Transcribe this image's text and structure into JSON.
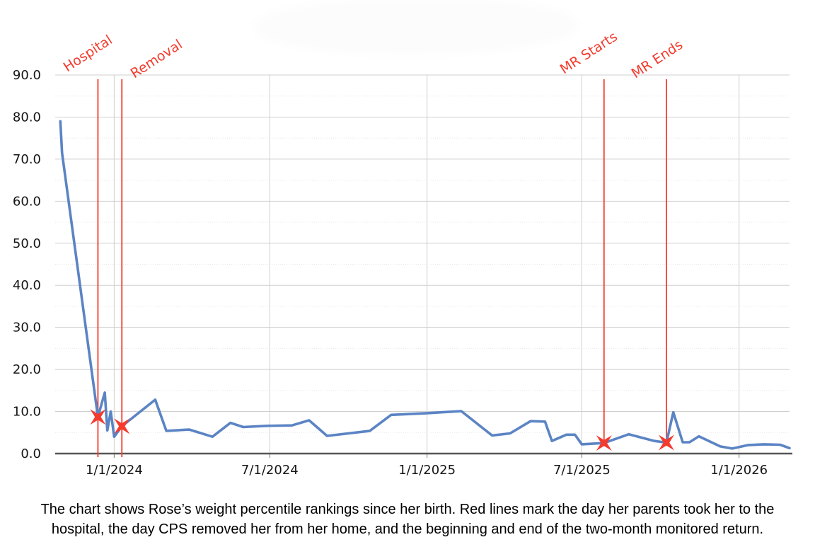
{
  "caption": {
    "line1": "The chart shows Rose’s weight percentile rankings since her birth. Red lines mark the day her parents took her to the",
    "line2": "hospital, the day CPS removed her from her home, and the beginning and end of the two-month monitored return."
  },
  "chart_data": {
    "type": "line",
    "title": "",
    "legend": "none",
    "grid": true,
    "ylabel": "",
    "xlabel": "",
    "ylim": [
      0,
      90
    ],
    "y_tick_labels": [
      "0.0",
      "10.0",
      "20.0",
      "30.0",
      "40.0",
      "50.0",
      "60.0",
      "70.0",
      "80.0",
      "90.0"
    ],
    "y_minor_step": 5,
    "x_domain": [
      "2023-10-24",
      "2026-03-01"
    ],
    "x_ticks": [
      {
        "date": "2024-01-01",
        "label": "1/1/2024"
      },
      {
        "date": "2024-07-01",
        "label": "7/1/2024"
      },
      {
        "date": "2025-01-01",
        "label": "1/1/2025"
      },
      {
        "date": "2025-07-01",
        "label": "7/1/2025"
      },
      {
        "date": "2026-01-01",
        "label": "1/1/2026"
      }
    ],
    "series": [
      {
        "name": "Weight percentile",
        "color": "#5b84c4",
        "points": [
          {
            "date": "2023-10-30",
            "value": 79
          },
          {
            "date": "2023-11-01",
            "value": 71.5
          },
          {
            "date": "2023-12-13",
            "value": 8.7
          },
          {
            "date": "2023-12-21",
            "value": 14.5
          },
          {
            "date": "2023-12-24",
            "value": 5.5
          },
          {
            "date": "2023-12-28",
            "value": 10
          },
          {
            "date": "2024-01-01",
            "value": 4
          },
          {
            "date": "2024-01-10",
            "value": 6.5
          },
          {
            "date": "2024-02-18",
            "value": 12.8
          },
          {
            "date": "2024-03-02",
            "value": 5.4
          },
          {
            "date": "2024-03-29",
            "value": 5.7
          },
          {
            "date": "2024-04-25",
            "value": 4
          },
          {
            "date": "2024-05-16",
            "value": 7.3
          },
          {
            "date": "2024-05-31",
            "value": 6.3
          },
          {
            "date": "2024-06-28",
            "value": 6.6
          },
          {
            "date": "2024-07-27",
            "value": 6.7
          },
          {
            "date": "2024-08-16",
            "value": 7.9
          },
          {
            "date": "2024-09-06",
            "value": 4.2
          },
          {
            "date": "2024-10-26",
            "value": 5.4
          },
          {
            "date": "2024-11-20",
            "value": 9.2
          },
          {
            "date": "2025-01-01",
            "value": 9.6
          },
          {
            "date": "2025-02-10",
            "value": 10.1
          },
          {
            "date": "2025-03-18",
            "value": 4.3
          },
          {
            "date": "2025-04-08",
            "value": 4.8
          },
          {
            "date": "2025-05-02",
            "value": 7.7
          },
          {
            "date": "2025-05-19",
            "value": 7.6
          },
          {
            "date": "2025-05-27",
            "value": 3
          },
          {
            "date": "2025-06-13",
            "value": 4.5
          },
          {
            "date": "2025-06-23",
            "value": 4.5
          },
          {
            "date": "2025-07-01",
            "value": 2.2
          },
          {
            "date": "2025-07-27",
            "value": 2.5
          },
          {
            "date": "2025-08-25",
            "value": 4.6
          },
          {
            "date": "2025-09-24",
            "value": 3
          },
          {
            "date": "2025-10-08",
            "value": 2.6
          },
          {
            "date": "2025-10-16",
            "value": 9.8
          },
          {
            "date": "2025-10-27",
            "value": 2.7
          },
          {
            "date": "2025-11-04",
            "value": 2.7
          },
          {
            "date": "2025-11-15",
            "value": 4.1
          },
          {
            "date": "2025-12-10",
            "value": 1.7
          },
          {
            "date": "2025-12-24",
            "value": 1.2
          },
          {
            "date": "2026-01-11",
            "value": 2
          },
          {
            "date": "2026-01-30",
            "value": 2.2
          },
          {
            "date": "2026-02-18",
            "value": 2.1
          },
          {
            "date": "2026-03-01",
            "value": 1.3
          }
        ]
      }
    ],
    "events": [
      {
        "label": "Hospital",
        "date": "2023-12-13",
        "marker_value": 8.7,
        "line_to": "axis",
        "label_anchor": [
          95,
          102
        ]
      },
      {
        "label": "Removal",
        "date": "2024-01-10",
        "marker_value": 6.5,
        "line_to": "axis",
        "label_anchor": [
          190,
          111
        ]
      },
      {
        "label": "MR Starts",
        "date": "2025-07-27",
        "marker_value": 2.5,
        "line_to": "marker",
        "label_anchor": [
          797,
          105
        ]
      },
      {
        "label": "MR Ends",
        "date": "2025-10-08",
        "marker_value": 2.6,
        "line_to": "marker",
        "label_anchor": [
          898,
          111
        ]
      }
    ],
    "label_rotation": -33,
    "colors": {
      "series_line": "#5b84c4",
      "event_red": "#f43b2e",
      "grid_major": "#cfcfcf",
      "grid_minor": "#e8e8e8",
      "axis_line": "#555555",
      "tick_mark": "#7a7a7a",
      "axis_text": "#161616"
    }
  }
}
